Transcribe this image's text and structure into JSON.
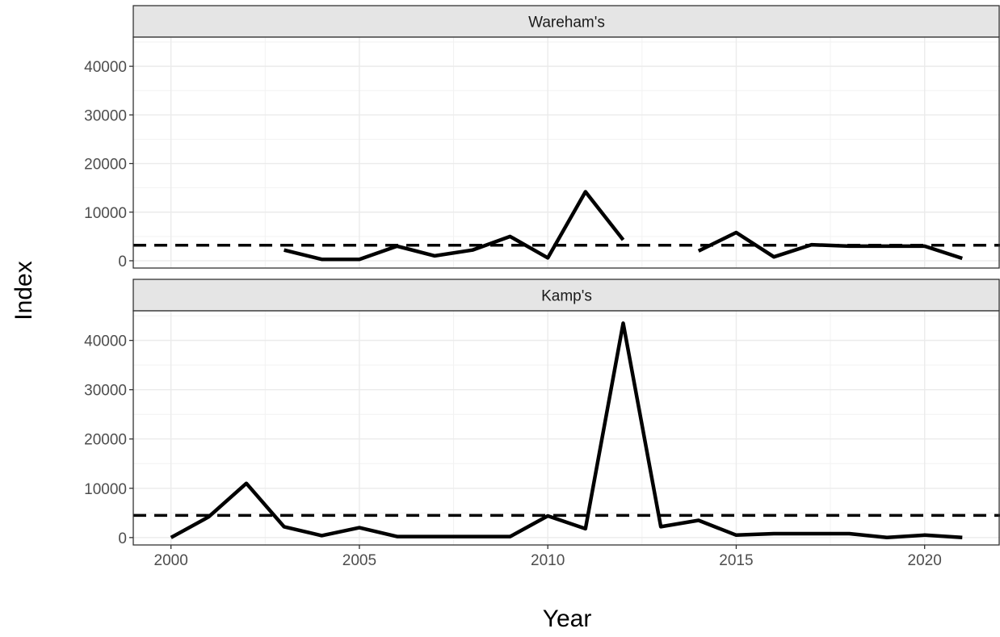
{
  "chart_data": {
    "type": "line",
    "xlabel": "Year",
    "ylabel": "Index",
    "xlim": [
      1999,
      2022
    ],
    "ylim": [
      -1500,
      46000
    ],
    "x_ticks": [
      2000,
      2005,
      2010,
      2015,
      2020
    ],
    "y_ticks": [
      0,
      10000,
      20000,
      30000,
      40000
    ],
    "grid": true,
    "legend": "none",
    "line_color": "#000000",
    "panels": [
      {
        "name": "Wareham's",
        "reference_line": 3200,
        "series": [
          {
            "x": [
              2003,
              2004,
              2005,
              2006,
              2007,
              2008,
              2009,
              2010,
              2011,
              2012
            ],
            "y": [
              2200,
              300,
              300,
              3000,
              1000,
              2200,
              5000,
              600,
              14200,
              4300
            ]
          },
          {
            "x": [
              2014,
              2015,
              2016,
              2017,
              2018,
              2019,
              2020,
              2021
            ],
            "y": [
              2000,
              5800,
              800,
              3300,
              3000,
              3000,
              3000,
              500
            ]
          }
        ]
      },
      {
        "name": "Kamp's",
        "reference_line": 4500,
        "series": [
          {
            "x": [
              2000,
              2001,
              2002,
              2003,
              2004,
              2005,
              2006,
              2007,
              2008,
              2009,
              2010,
              2011,
              2012,
              2013,
              2014,
              2015,
              2016,
              2017,
              2018,
              2019,
              2020,
              2021
            ],
            "y": [
              0,
              4200,
              11000,
              2200,
              400,
              2000,
              200,
              200,
              200,
              200,
              4400,
              1800,
              43500,
              2200,
              3500,
              500,
              800,
              800,
              800,
              0,
              500,
              0
            ]
          }
        ]
      }
    ]
  }
}
